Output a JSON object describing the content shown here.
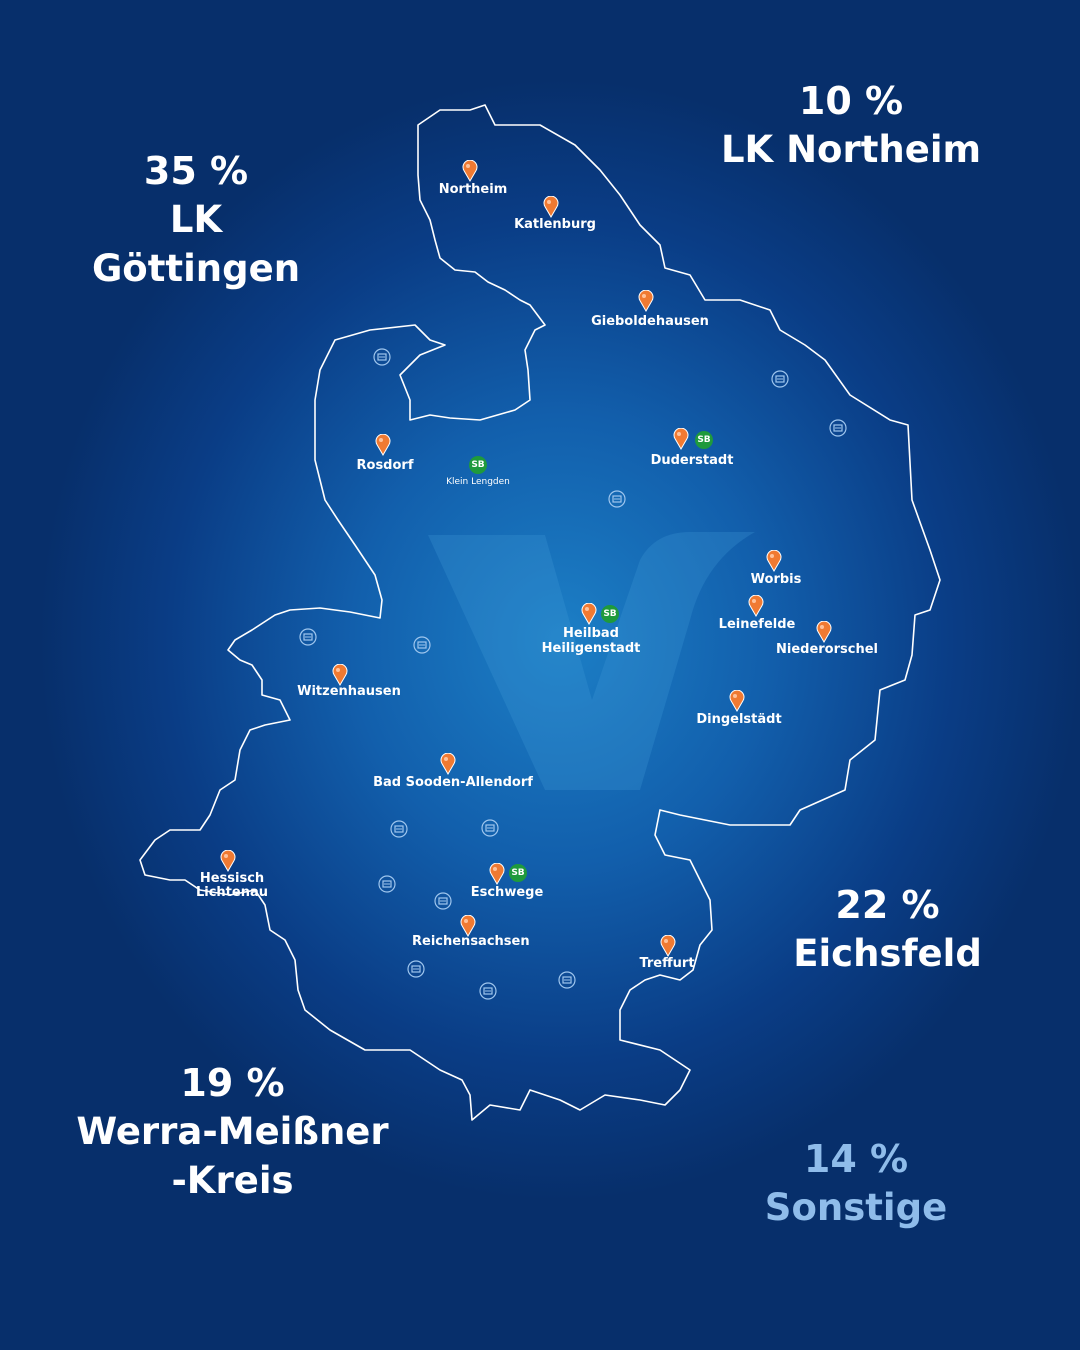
{
  "stats": {
    "goettingen": {
      "pct": "35 %",
      "name": "LK Göttingen"
    },
    "northeim": {
      "pct": "10 %",
      "name": "LK Northeim"
    },
    "eichsfeld": {
      "pct": "22 %",
      "name": "Eichsfeld"
    },
    "werra": {
      "pct": "19 %",
      "name1": "Werra-Meißner",
      "name2": "-Kreis"
    },
    "sonstige": {
      "pct": "14 %",
      "name": "Sonstige"
    }
  },
  "places": {
    "northeim": "Northeim",
    "katlenburg": "Katlenburg",
    "gieboldehausen": "Gieboldehausen",
    "rosdorf": "Rosdorf",
    "klein_lengden": "Klein Lengden",
    "duderstadt": "Duderstadt",
    "worbis": "Worbis",
    "leinefelde": "Leinefelde",
    "niederorschel": "Niederorschel",
    "heilbad_1": "Heilbad",
    "heilbad_2": "Heiligenstadt",
    "witzenhausen": "Witzenhausen",
    "dingelstaedt": "Dingelstädt",
    "bad_sooden": "Bad Sooden-Allendorf",
    "hessisch_1": "Hessisch",
    "hessisch_2": "Lichtenau",
    "eschwege": "Eschwege",
    "reichensachsen": "Reichensachsen",
    "treffurt": "Treffurt"
  },
  "sb_label": "SB",
  "colors": {
    "background": "#0a3d86",
    "pin": "#f07a32",
    "sb_badge": "#1f9a3c",
    "outline": "#ffffff",
    "sonstige_text": "#8fbcea"
  },
  "icons": {
    "branch": "location-pin-icon",
    "self_service": "sb-badge-icon",
    "atm": "atm-icon",
    "logo": "v-logo-icon"
  }
}
